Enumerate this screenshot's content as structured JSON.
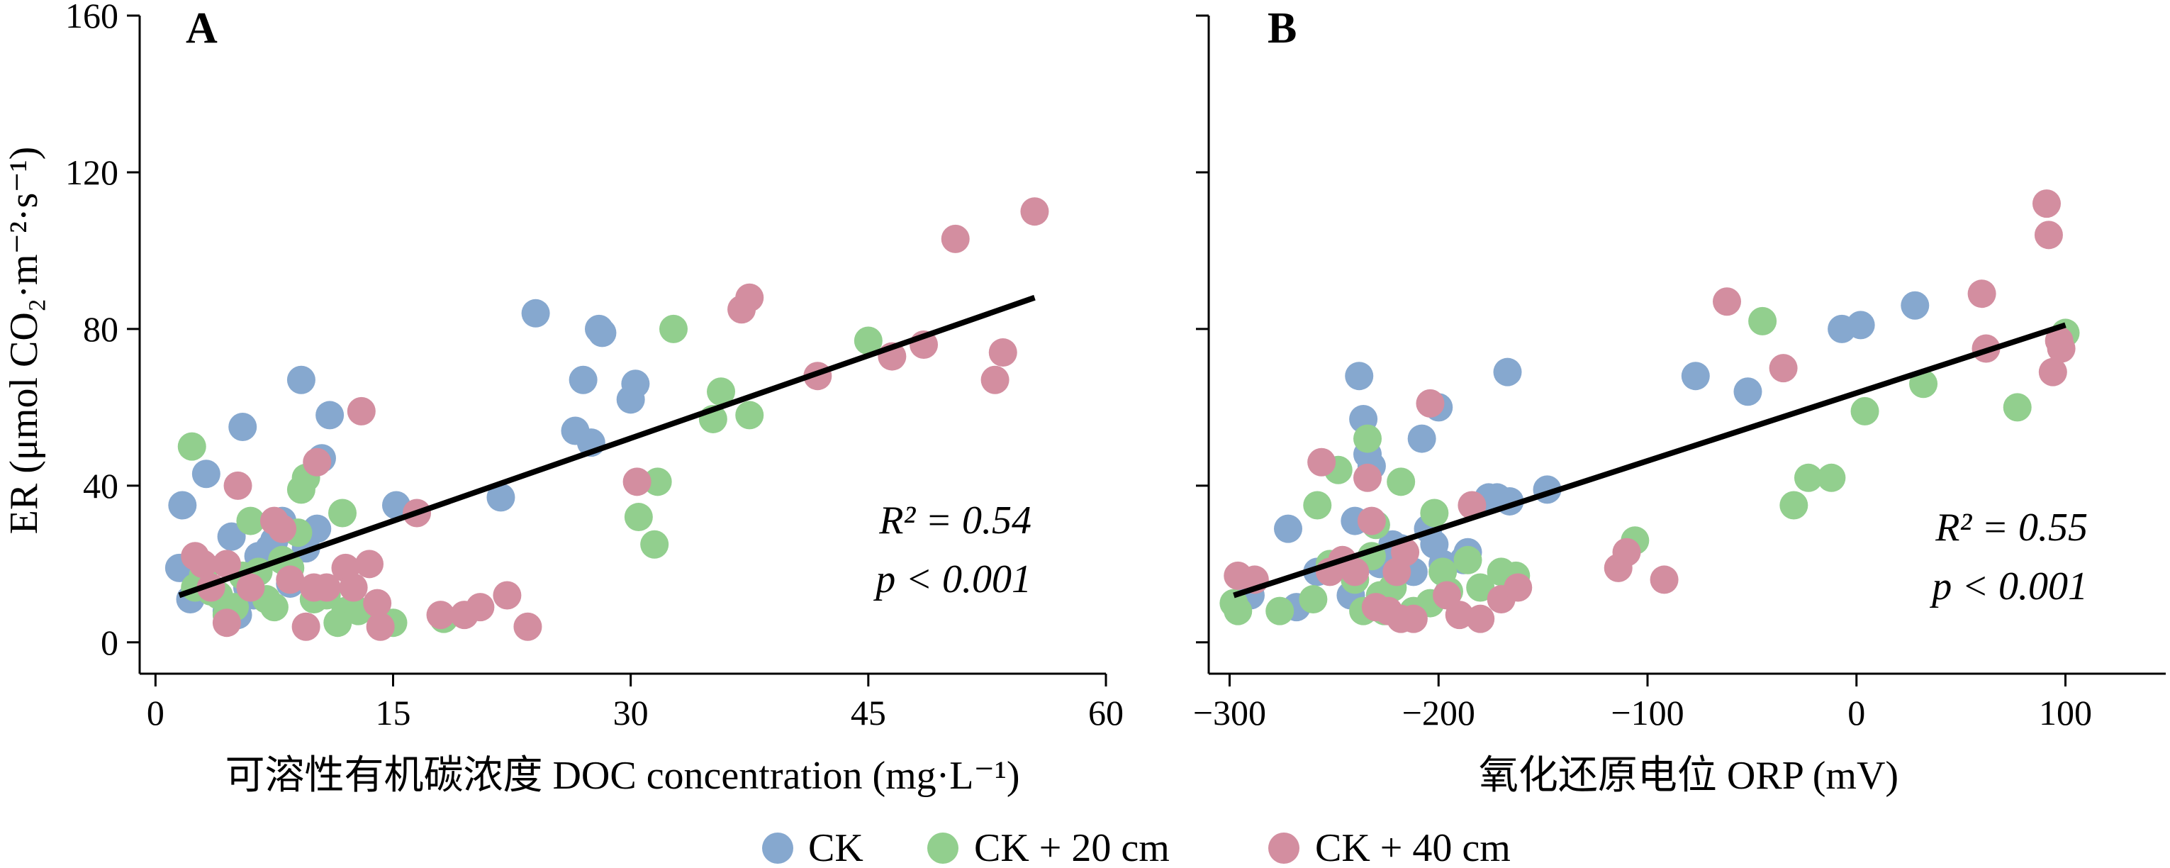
{
  "chart_data": [
    {
      "panel": "A",
      "type": "scatter",
      "xlabel": "可溶性有机碳浓度 DOC concentration (mg·L⁻¹)",
      "ylabel": "ER (μmol CO₂·m⁻²·s⁻¹)",
      "xlim": [
        -1,
        60
      ],
      "ylim": [
        -8,
        160
      ],
      "xticks": [
        "0",
        "15",
        "30",
        "45",
        "60"
      ],
      "yticks": [
        "0",
        "40",
        "80",
        "120",
        "160"
      ],
      "r2_text": "R² = 0.54",
      "p_text": "p < 0.001",
      "fit": {
        "x": [
          1.5,
          55.5
        ],
        "y": [
          12,
          88
        ]
      },
      "series": [
        {
          "name": "CK",
          "color": "#86a8cf",
          "points": [
            [
              1.5,
              19
            ],
            [
              1.7,
              35
            ],
            [
              2.2,
              11
            ],
            [
              3.2,
              43
            ],
            [
              4.5,
              8
            ],
            [
              4.8,
              27
            ],
            [
              5.2,
              7
            ],
            [
              5.5,
              55
            ],
            [
              5.8,
              14
            ],
            [
              6.2,
              12
            ],
            [
              6.5,
              22
            ],
            [
              7.2,
              24
            ],
            [
              7.5,
              26
            ],
            [
              8,
              31
            ],
            [
              8.5,
              15
            ],
            [
              9.2,
              67
            ],
            [
              9.5,
              24
            ],
            [
              10.2,
              29
            ],
            [
              10.5,
              47
            ],
            [
              11,
              58
            ],
            [
              15.2,
              35
            ],
            [
              21.8,
              37
            ],
            [
              24,
              84
            ],
            [
              26.5,
              54
            ],
            [
              27,
              67
            ],
            [
              27.5,
              51
            ],
            [
              28,
              80
            ],
            [
              28.2,
              79
            ],
            [
              30,
              62
            ],
            [
              30.3,
              66
            ]
          ]
        },
        {
          "name": "CK + 20 cm",
          "color": "#92cf8e",
          "points": [
            [
              2.3,
              50
            ],
            [
              2.5,
              14
            ],
            [
              3,
              17
            ],
            [
              3.5,
              13
            ],
            [
              4,
              12
            ],
            [
              4.5,
              7
            ],
            [
              5,
              9
            ],
            [
              5.5,
              17
            ],
            [
              6,
              31
            ],
            [
              6.5,
              18
            ],
            [
              7,
              11
            ],
            [
              7.5,
              9
            ],
            [
              8,
              21
            ],
            [
              8.5,
              19
            ],
            [
              9,
              28
            ],
            [
              9.2,
              39
            ],
            [
              9.5,
              42
            ],
            [
              10,
              11
            ],
            [
              10.8,
              12
            ],
            [
              11.5,
              5
            ],
            [
              11.8,
              33
            ],
            [
              12,
              8
            ],
            [
              12.8,
              8
            ],
            [
              15,
              5
            ],
            [
              18.2,
              6
            ],
            [
              30.5,
              32
            ],
            [
              31.5,
              25
            ],
            [
              31.7,
              41
            ],
            [
              32.7,
              80
            ],
            [
              35.2,
              57
            ],
            [
              35.7,
              64
            ],
            [
              37.5,
              58
            ],
            [
              45,
              77
            ]
          ]
        },
        {
          "name": "CK + 40 cm",
          "color": "#d38ea0",
          "points": [
            [
              2.5,
              22
            ],
            [
              3,
              20
            ],
            [
              3.5,
              14
            ],
            [
              4.5,
              5
            ],
            [
              4.5,
              20
            ],
            [
              5.2,
              40
            ],
            [
              6,
              14
            ],
            [
              7.5,
              31
            ],
            [
              8,
              29
            ],
            [
              8.5,
              16
            ],
            [
              9.5,
              4
            ],
            [
              10,
              14
            ],
            [
              10.2,
              46
            ],
            [
              10.8,
              14
            ],
            [
              12,
              19
            ],
            [
              12.5,
              14
            ],
            [
              13,
              59
            ],
            [
              13.5,
              20
            ],
            [
              14,
              10
            ],
            [
              14.2,
              4
            ],
            [
              16.5,
              33
            ],
            [
              18,
              7
            ],
            [
              19.5,
              7
            ],
            [
              20.5,
              9
            ],
            [
              22.2,
              12
            ],
            [
              23.5,
              4
            ],
            [
              30.4,
              41
            ],
            [
              37,
              85
            ],
            [
              37.5,
              88
            ],
            [
              41.8,
              68
            ],
            [
              46.5,
              73
            ],
            [
              48.5,
              76
            ],
            [
              50.5,
              103
            ],
            [
              53,
              67
            ],
            [
              53.5,
              74
            ],
            [
              55.5,
              110
            ]
          ]
        }
      ]
    },
    {
      "panel": "B",
      "type": "scatter",
      "xlabel": "氧化还原电位 ORP (mV)",
      "ylabel": "",
      "xlim": [
        -310,
        148
      ],
      "ylim": [
        -8,
        160
      ],
      "xticks": [
        "−300",
        "−200",
        "−100",
        "0",
        "100"
      ],
      "yticks": [],
      "r2_text": "R² = 0.55",
      "p_text": "p < 0.001",
      "fit": {
        "x": [
          -298,
          100
        ],
        "y": [
          12,
          81
        ]
      },
      "series": [
        {
          "name": "CK",
          "color": "#86a8cf",
          "points": [
            [
              -290,
              12
            ],
            [
              -272,
              29
            ],
            [
              -268,
              9
            ],
            [
              -258,
              18
            ],
            [
              -242,
              12
            ],
            [
              -240,
              31
            ],
            [
              -238,
              68
            ],
            [
              -236,
              57
            ],
            [
              -234,
              48
            ],
            [
              -232,
              45
            ],
            [
              -230,
              30
            ],
            [
              -228,
              20
            ],
            [
              -222,
              25
            ],
            [
              -218,
              24
            ],
            [
              -212,
              18
            ],
            [
              -208,
              52
            ],
            [
              -205,
              29
            ],
            [
              -202,
              25
            ],
            [
              -200,
              60
            ],
            [
              -198,
              20
            ],
            [
              -188,
              21
            ],
            [
              -186,
              23
            ],
            [
              -176,
              37
            ],
            [
              -172,
              37
            ],
            [
              -167,
              69
            ],
            [
              -166,
              36
            ],
            [
              -148,
              39
            ],
            [
              -77,
              68
            ],
            [
              -52,
              64
            ],
            [
              -7,
              80
            ],
            [
              2,
              81
            ],
            [
              28,
              86
            ]
          ]
        },
        {
          "name": "CK + 20 cm",
          "color": "#92cf8e",
          "points": [
            [
              -298,
              10
            ],
            [
              -296,
              8
            ],
            [
              -276,
              8
            ],
            [
              -260,
              11
            ],
            [
              -258,
              35
            ],
            [
              -252,
              20
            ],
            [
              -248,
              44
            ],
            [
              -240,
              16
            ],
            [
              -236,
              8
            ],
            [
              -234,
              52
            ],
            [
              -232,
              22
            ],
            [
              -230,
              30
            ],
            [
              -228,
              12
            ],
            [
              -226,
              8
            ],
            [
              -222,
              14
            ],
            [
              -218,
              41
            ],
            [
              -212,
              8
            ],
            [
              -204,
              10
            ],
            [
              -202,
              33
            ],
            [
              -198,
              18
            ],
            [
              -195,
              13
            ],
            [
              -186,
              21
            ],
            [
              -180,
              14
            ],
            [
              -170,
              18
            ],
            [
              -163,
              17
            ],
            [
              -106,
              26
            ],
            [
              -45,
              82
            ],
            [
              -30,
              35
            ],
            [
              -23,
              42
            ],
            [
              -12,
              42
            ],
            [
              4,
              59
            ],
            [
              32,
              66
            ],
            [
              77,
              60
            ],
            [
              100,
              79
            ]
          ]
        },
        {
          "name": "CK + 40 cm",
          "color": "#d38ea0",
          "points": [
            [
              -296,
              17
            ],
            [
              -288,
              16
            ],
            [
              -256,
              46
            ],
            [
              -252,
              18
            ],
            [
              -246,
              21
            ],
            [
              -240,
              18
            ],
            [
              -234,
              42
            ],
            [
              -232,
              31
            ],
            [
              -230,
              9
            ],
            [
              -224,
              8
            ],
            [
              -220,
              18
            ],
            [
              -218,
              6
            ],
            [
              -216,
              23
            ],
            [
              -212,
              6
            ],
            [
              -204,
              61
            ],
            [
              -196,
              12
            ],
            [
              -190,
              7
            ],
            [
              -184,
              35
            ],
            [
              -180,
              6
            ],
            [
              -170,
              11
            ],
            [
              -162,
              14
            ],
            [
              -114,
              19
            ],
            [
              -110,
              23
            ],
            [
              -92,
              16
            ],
            [
              -62,
              87
            ],
            [
              -35,
              70
            ],
            [
              60,
              89
            ],
            [
              62,
              75
            ],
            [
              91,
              112
            ],
            [
              92,
              104
            ],
            [
              94,
              69
            ],
            [
              97,
              77
            ],
            [
              98,
              75
            ]
          ]
        }
      ]
    }
  ],
  "panels": {
    "a": {
      "label": "A",
      "xlabel": "可溶性有机碳浓度 DOC concentration (mg·L⁻¹)"
    },
    "b": {
      "label": "B",
      "xlabel": "氧化还原电位 ORP (mV)"
    }
  },
  "ylabel": "ER (μmol CO₂·m⁻²·s⁻¹)",
  "legend": {
    "items": [
      {
        "label": "CK",
        "color": "#86a8cf"
      },
      {
        "label": "CK + 20 cm",
        "color": "#92cf8e"
      },
      {
        "label": "CK + 40 cm",
        "color": "#d38ea0"
      }
    ]
  }
}
